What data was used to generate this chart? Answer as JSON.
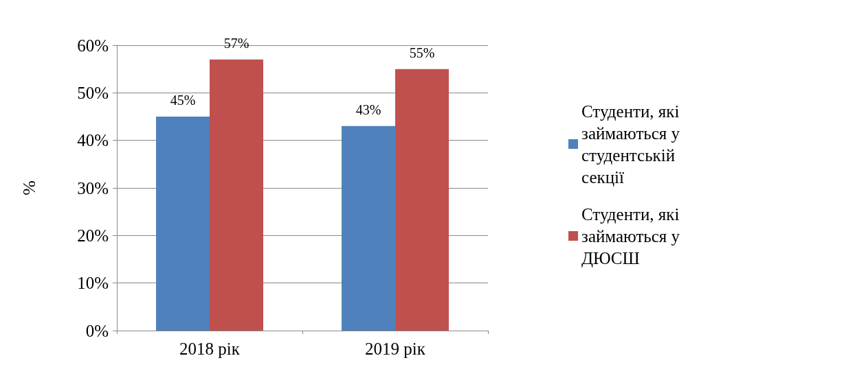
{
  "chart_data": {
    "type": "bar",
    "categories": [
      "2018 рік",
      "2019 рік"
    ],
    "series": [
      {
        "name": "Студенти, які займаються у студентській секції",
        "color": "#4f81bd",
        "values": [
          45,
          43
        ],
        "value_labels": [
          "45%",
          "43%"
        ]
      },
      {
        "name": "Студенти, які займаються у ДЮСШ",
        "color": "#c0504d",
        "values": [
          57,
          55
        ],
        "value_labels": [
          "57%",
          "55%"
        ]
      }
    ],
    "ylabel": "%",
    "ylim": [
      0,
      60
    ],
    "yticks": [
      {
        "value": 0,
        "label": "0%"
      },
      {
        "value": 10,
        "label": "10%"
      },
      {
        "value": 20,
        "label": "20%"
      },
      {
        "value": 30,
        "label": "30%"
      },
      {
        "value": 40,
        "label": "40%"
      },
      {
        "value": 50,
        "label": "50%"
      },
      {
        "value": 60,
        "label": "60%"
      }
    ],
    "grid": "y",
    "legend": "right"
  }
}
